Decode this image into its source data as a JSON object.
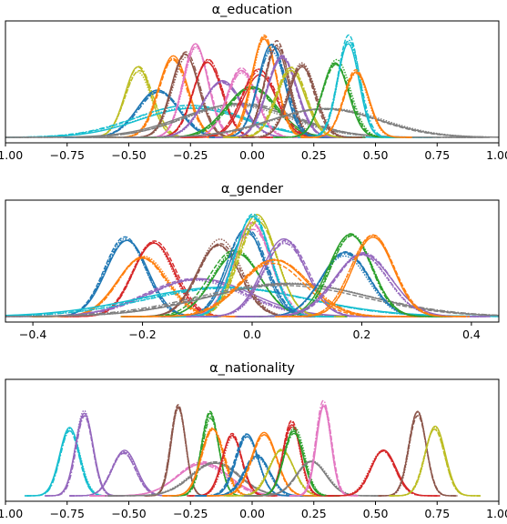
{
  "chart_data": [
    {
      "type": "line",
      "title": "α_education",
      "xlabel": "",
      "ylabel": "",
      "xlim": [
        -1.0,
        1.0
      ],
      "x_ticks": [
        "−1.00",
        "−0.75",
        "−0.50",
        "−0.25",
        "0.00",
        "0.25",
        "0.50",
        "0.75",
        "1.00"
      ],
      "x_tick_values": [
        -1.0,
        -0.75,
        -0.5,
        -0.25,
        0.0,
        0.25,
        0.5,
        0.75,
        1.0
      ],
      "y_ticks_shown": false,
      "grid": false,
      "line_styles": [
        "solid",
        "dashed",
        "dotted",
        "dashdot"
      ],
      "series": [
        {
          "color": "#bcbd22",
          "mean": -0.46,
          "sd": 0.055,
          "peak": 0.62
        },
        {
          "color": "#1f77b4",
          "mean": -0.38,
          "sd": 0.085,
          "peak": 0.42
        },
        {
          "color": "#17becf",
          "mean": -0.25,
          "sd": 0.22,
          "peak": 0.28
        },
        {
          "color": "#ff7f0e",
          "mean": -0.32,
          "sd": 0.06,
          "peak": 0.74
        },
        {
          "color": "#8c564b",
          "mean": -0.27,
          "sd": 0.055,
          "peak": 0.76
        },
        {
          "color": "#e377c2",
          "mean": -0.23,
          "sd": 0.052,
          "peak": 0.85
        },
        {
          "color": "#d62728",
          "mean": -0.18,
          "sd": 0.06,
          "peak": 0.72
        },
        {
          "color": "#7f7f7f",
          "mean": -0.05,
          "sd": 0.22,
          "peak": 0.3
        },
        {
          "color": "#9467bd",
          "mean": -0.12,
          "sd": 0.08,
          "peak": 0.5
        },
        {
          "color": "#e377c2",
          "mean": -0.04,
          "sd": 0.06,
          "peak": 0.62
        },
        {
          "color": "#2ca02c",
          "mean": 0.0,
          "sd": 0.1,
          "peak": 0.45
        },
        {
          "color": "#d62728",
          "mean": 0.03,
          "sd": 0.07,
          "peak": 0.6
        },
        {
          "color": "#ff7f0e",
          "mean": 0.05,
          "sd": 0.05,
          "peak": 0.9
        },
        {
          "color": "#8c564b",
          "mean": 0.1,
          "sd": 0.05,
          "peak": 0.86
        },
        {
          "color": "#1f77b4",
          "mean": 0.08,
          "sd": 0.055,
          "peak": 0.82
        },
        {
          "color": "#9467bd",
          "mean": 0.12,
          "sd": 0.06,
          "peak": 0.74
        },
        {
          "color": "#bcbd22",
          "mean": 0.16,
          "sd": 0.06,
          "peak": 0.62
        },
        {
          "color": "#8c564b",
          "mean": 0.2,
          "sd": 0.055,
          "peak": 0.66
        },
        {
          "color": "#7f7f7f",
          "mean": 0.3,
          "sd": 0.22,
          "peak": 0.26
        },
        {
          "color": "#2ca02c",
          "mean": 0.34,
          "sd": 0.055,
          "peak": 0.68
        },
        {
          "color": "#17becf",
          "mean": 0.39,
          "sd": 0.045,
          "peak": 0.9
        },
        {
          "color": "#ff7f0e",
          "mean": 0.42,
          "sd": 0.05,
          "peak": 0.6
        }
      ]
    },
    {
      "type": "line",
      "title": "α_gender",
      "xlabel": "",
      "ylabel": "",
      "xlim": [
        -0.45,
        0.45
      ],
      "x_ticks": [
        "−0.4",
        "−0.2",
        "0.0",
        "0.2",
        "0.4"
      ],
      "x_tick_values": [
        -0.4,
        -0.2,
        0.0,
        0.2,
        0.4
      ],
      "y_ticks_shown": false,
      "grid": false,
      "line_styles": [
        "solid",
        "dashed",
        "dotted",
        "dashdot"
      ],
      "series": [
        {
          "color": "#1f77b4",
          "mean": -0.23,
          "sd": 0.038,
          "peak": 0.7
        },
        {
          "color": "#d62728",
          "mean": -0.18,
          "sd": 0.038,
          "peak": 0.7
        },
        {
          "color": "#ff7f0e",
          "mean": -0.2,
          "sd": 0.045,
          "peak": 0.56
        },
        {
          "color": "#9467bd",
          "mean": -0.1,
          "sd": 0.09,
          "peak": 0.34
        },
        {
          "color": "#17becf",
          "mean": -0.05,
          "sd": 0.15,
          "peak": 0.26
        },
        {
          "color": "#8c564b",
          "mean": -0.06,
          "sd": 0.04,
          "peak": 0.68
        },
        {
          "color": "#2ca02c",
          "mean": -0.03,
          "sd": 0.045,
          "peak": 0.58
        },
        {
          "color": "#1f77b4",
          "mean": -0.01,
          "sd": 0.035,
          "peak": 0.78
        },
        {
          "color": "#e377c2",
          "mean": 0.0,
          "sd": 0.035,
          "peak": 0.84
        },
        {
          "color": "#bcbd22",
          "mean": 0.01,
          "sd": 0.035,
          "peak": 0.9
        },
        {
          "color": "#17becf",
          "mean": 0.0,
          "sd": 0.033,
          "peak": 0.92
        },
        {
          "color": "#7f7f7f",
          "mean": 0.06,
          "sd": 0.15,
          "peak": 0.3
        },
        {
          "color": "#9467bd",
          "mean": 0.06,
          "sd": 0.04,
          "peak": 0.68
        },
        {
          "color": "#ff7f0e",
          "mean": 0.04,
          "sd": 0.06,
          "peak": 0.5
        },
        {
          "color": "#1f77b4",
          "mean": 0.17,
          "sd": 0.045,
          "peak": 0.58
        },
        {
          "color": "#2ca02c",
          "mean": 0.18,
          "sd": 0.038,
          "peak": 0.76
        },
        {
          "color": "#9467bd",
          "mean": 0.2,
          "sd": 0.05,
          "peak": 0.56
        },
        {
          "color": "#ff7f0e",
          "mean": 0.22,
          "sd": 0.038,
          "peak": 0.74
        }
      ]
    },
    {
      "type": "line",
      "title": "α_nationality",
      "xlabel": "",
      "ylabel": "",
      "xlim": [
        -1.0,
        1.0
      ],
      "x_ticks": [
        "−1.00",
        "−0.75",
        "−0.50",
        "−0.25",
        "0.00",
        "0.25",
        "0.50",
        "0.75",
        "1.00"
      ],
      "x_tick_values": [
        -1.0,
        -0.75,
        -0.5,
        -0.25,
        0.0,
        0.25,
        0.5,
        0.75,
        1.0
      ],
      "y_ticks_shown": false,
      "grid": false,
      "line_styles": [
        "solid",
        "dashed",
        "dotted",
        "dashdot"
      ],
      "series": [
        {
          "color": "#17becf",
          "mean": -0.74,
          "sd": 0.04,
          "peak": 0.62
        },
        {
          "color": "#9467bd",
          "mean": -0.68,
          "sd": 0.035,
          "peak": 0.76
        },
        {
          "color": "#9467bd",
          "mean": -0.52,
          "sd": 0.05,
          "peak": 0.4
        },
        {
          "color": "#e377c2",
          "mean": -0.2,
          "sd": 0.1,
          "peak": 0.3
        },
        {
          "color": "#8c564b",
          "mean": -0.3,
          "sd": 0.03,
          "peak": 0.84
        },
        {
          "color": "#7f7f7f",
          "mean": -0.15,
          "sd": 0.1,
          "peak": 0.3
        },
        {
          "color": "#2ca02c",
          "mean": -0.17,
          "sd": 0.035,
          "peak": 0.74
        },
        {
          "color": "#ff7f0e",
          "mean": -0.16,
          "sd": 0.045,
          "peak": 0.6
        },
        {
          "color": "#d62728",
          "mean": -0.08,
          "sd": 0.04,
          "peak": 0.56
        },
        {
          "color": "#1f77b4",
          "mean": -0.02,
          "sd": 0.045,
          "peak": 0.56
        },
        {
          "color": "#1f77b4",
          "mean": 0.02,
          "sd": 0.05,
          "peak": 0.36
        },
        {
          "color": "#ff7f0e",
          "mean": 0.05,
          "sd": 0.05,
          "peak": 0.56
        },
        {
          "color": "#bcbd22",
          "mean": 0.12,
          "sd": 0.05,
          "peak": 0.42
        },
        {
          "color": "#d62728",
          "mean": 0.16,
          "sd": 0.035,
          "peak": 0.66
        },
        {
          "color": "#2ca02c",
          "mean": 0.17,
          "sd": 0.04,
          "peak": 0.6
        },
        {
          "color": "#7f7f7f",
          "mean": 0.24,
          "sd": 0.06,
          "peak": 0.32
        },
        {
          "color": "#e377c2",
          "mean": 0.29,
          "sd": 0.03,
          "peak": 0.84
        },
        {
          "color": "#d62728",
          "mean": 0.53,
          "sd": 0.05,
          "peak": 0.4
        },
        {
          "color": "#8c564b",
          "mean": 0.67,
          "sd": 0.035,
          "peak": 0.74
        },
        {
          "color": "#bcbd22",
          "mean": 0.74,
          "sd": 0.04,
          "peak": 0.62
        }
      ]
    }
  ]
}
